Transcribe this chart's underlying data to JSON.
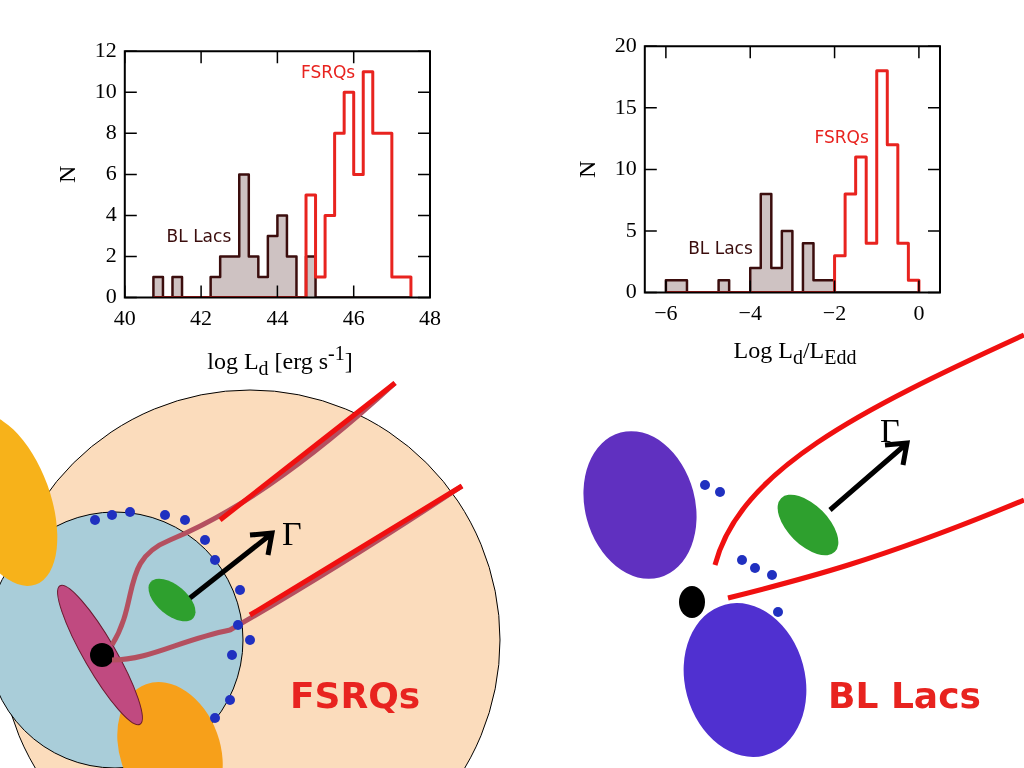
{
  "chart_data": [
    {
      "type": "histogram",
      "xlabel": "log L$_{d}$ [erg s$^{-1}$]",
      "ylabel": "N",
      "bins": [
        40.75,
        41,
        41.25,
        41.5,
        41.75,
        42,
        42.25,
        42.5,
        42.75,
        43,
        43.25,
        43.5,
        43.75,
        44,
        44.25,
        44.5,
        44.75,
        45,
        45.25,
        45.5,
        45.75,
        46,
        46.25,
        46.5,
        46.75,
        47,
        47.25,
        47.5
      ],
      "series": [
        {
          "name": "BL Lacs",
          "color": "#3b0d0d",
          "values": [
            1,
            0,
            1,
            0,
            0,
            0,
            1,
            2,
            2,
            6,
            2,
            1,
            3,
            4,
            2,
            0,
            2,
            0,
            0,
            0,
            0,
            0,
            0,
            0,
            0,
            0,
            0
          ]
        },
        {
          "name": "FSRQs",
          "color": "#e8231f",
          "values": [
            0,
            0,
            0,
            0,
            0,
            0,
            0,
            0,
            0,
            0,
            0,
            0,
            0,
            0,
            0,
            0,
            5,
            1,
            4,
            8,
            10,
            6,
            11,
            8,
            8,
            1,
            1
          ]
        }
      ],
      "xlim": [
        40,
        48
      ],
      "xticks": [
        40,
        42,
        44,
        46,
        48
      ],
      "ylim": [
        0,
        12
      ],
      "yticks": [
        0,
        2,
        4,
        6,
        8,
        10,
        12
      ],
      "grid": false,
      "legend": false
    },
    {
      "type": "histogram",
      "xlabel": "Log L$_{d}$/L$_{Edd}$",
      "ylabel": "N",
      "bins": [
        -6,
        -5.75,
        -5.5,
        -5.25,
        -5,
        -4.75,
        -4.5,
        -4.25,
        -4,
        -3.75,
        -3.5,
        -3.25,
        -3,
        -2.75,
        -2.5,
        -2.25,
        -2,
        -1.75,
        -1.5,
        -1.25,
        -1,
        -0.75,
        -0.5,
        -0.25,
        0
      ],
      "series": [
        {
          "name": "BL Lacs",
          "color": "#3b0d0d",
          "values": [
            1,
            1,
            0,
            0,
            0,
            1,
            0,
            0,
            2,
            8,
            2,
            5,
            0,
            4,
            1,
            1,
            0,
            0,
            0,
            0,
            0,
            0,
            0,
            0
          ]
        },
        {
          "name": "FSRQs",
          "color": "#e8231f",
          "values": [
            0,
            0,
            0,
            0,
            0,
            0,
            0,
            0,
            0,
            0,
            0,
            0,
            0,
            0,
            0,
            0,
            3,
            8,
            11,
            4,
            18,
            12,
            4,
            1
          ]
        }
      ],
      "xlim": [
        -6.5,
        0.5
      ],
      "xticks": [
        -6,
        -4,
        -2,
        0
      ],
      "ylim": [
        0,
        20
      ],
      "yticks": [
        0,
        5,
        10,
        15,
        20
      ],
      "grid": false,
      "legend": false
    },
    {
      "type": "other",
      "annotations": [
        "Γ",
        "FSRQs"
      ]
    },
    {
      "type": "other",
      "annotations": [
        "Γ",
        "BL Lacs"
      ]
    }
  ]
}
